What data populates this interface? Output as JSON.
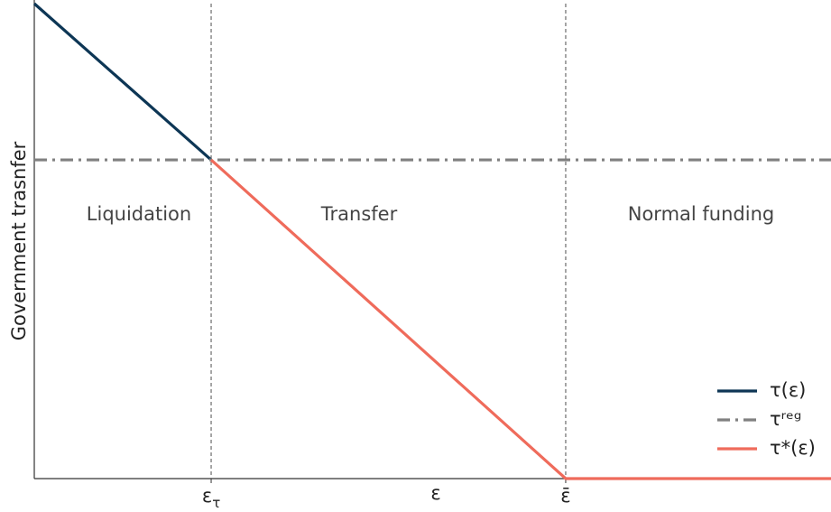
{
  "chart_data": {
    "type": "line",
    "xlabel": "ε",
    "ylabel": "Government trasnfer",
    "xlim": [
      0,
      1
    ],
    "ylim": [
      0,
      1
    ],
    "xticks": [
      {
        "value": 0.222,
        "label": "ετ"
      },
      {
        "value": 0.667,
        "label": "ε̄"
      }
    ],
    "grid": true,
    "legend": "lower right",
    "annotations": [
      "Liquidation",
      "Transfer",
      "Normal funding"
    ],
    "series": [
      {
        "name": "τ(ε)",
        "color": "#0d3655",
        "style": "solid",
        "x": [
          0,
          0.222
        ],
        "values": [
          1,
          0.671
        ]
      },
      {
        "name": "τʳᵉᵍ",
        "color": "#808080",
        "style": "dashdot",
        "x": [
          0,
          1
        ],
        "values": [
          0.671,
          0.671
        ]
      },
      {
        "name": "τ*(ε)",
        "color": "#ef6b5b",
        "style": "solid",
        "x": [
          0.222,
          0.667,
          1
        ],
        "values": [
          0.671,
          0,
          0
        ]
      }
    ]
  }
}
